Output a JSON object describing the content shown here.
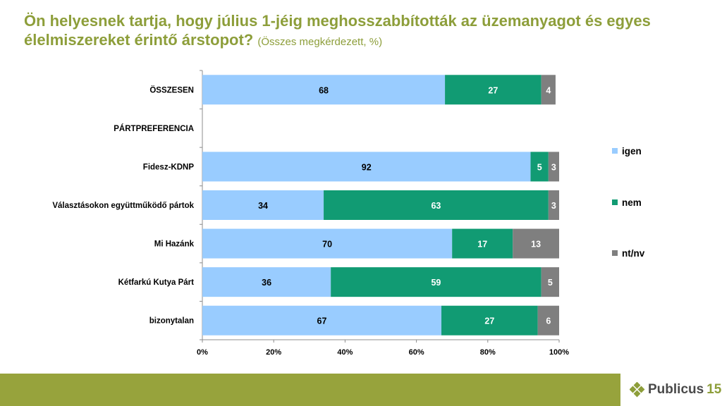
{
  "title": {
    "main": "Ön helyesnek tartja, hogy július 1-jéig meghosszabbították az üzemanyagot és egyes élelmiszereket érintő árstopot?",
    "sub": "(Összes megkérdezett, %)"
  },
  "chart_data": {
    "type": "bar",
    "orientation": "horizontal",
    "stacked": true,
    "percent_stacked": true,
    "categories": [
      "ÖSSZESEN",
      "PÁRTPREFERENCIA",
      "Fidesz-KDNP",
      "Választásokon együttműködő pártok",
      "Mi Hazánk",
      "Kétfarkú Kutya Párt",
      "bizonytalan"
    ],
    "series": [
      {
        "name": "igen",
        "color": "#99ccff",
        "values": [
          68,
          null,
          92,
          34,
          70,
          36,
          67
        ]
      },
      {
        "name": "nem",
        "color": "#119b73",
        "values": [
          27,
          null,
          5,
          63,
          17,
          59,
          27
        ]
      },
      {
        "name": "nt/nv",
        "color": "#7f7f7f",
        "values": [
          4,
          null,
          3,
          3,
          13,
          5,
          6
        ]
      }
    ],
    "xlim": [
      0,
      100
    ],
    "xticks": [
      "0%",
      "20%",
      "40%",
      "60%",
      "80%",
      "100%"
    ],
    "legend_position": "right",
    "grid": false
  },
  "footer": {
    "brand": "Publicus",
    "badge": "15"
  }
}
